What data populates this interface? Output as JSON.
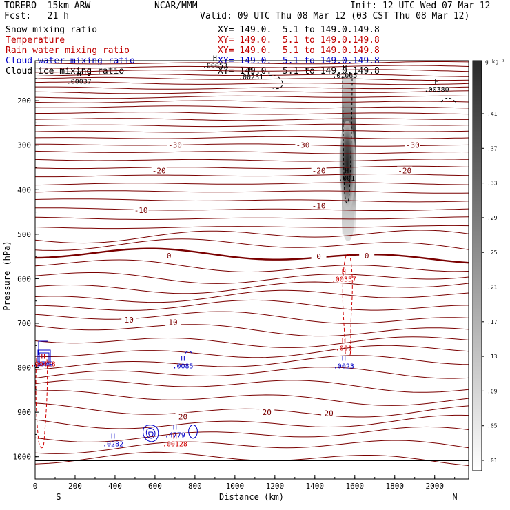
{
  "header": {
    "model": "TORERO  15km ARW",
    "center": "NCAR/MMM",
    "init": "Init: 12 UTC Wed 07 Mar 12",
    "fcst": "Fcst:   21 h",
    "valid": "Valid: 09 UTC Thu 08 Mar 12 (03 CST Thu 08 Mar 12)",
    "fields": [
      {
        "name": "Snow mixing ratio",
        "xy": "XY= 149.0.  5.1 to 149.0.149.8",
        "color": "#000000"
      },
      {
        "name": "Temperature",
        "xy": "XY= 149.0.  5.1 to 149.0.149.8",
        "color": "#c00000"
      },
      {
        "name": "Rain water mixing ratio",
        "xy": "XY= 149.0.  5.1 to 149.0.149.8",
        "color": "#c00000"
      },
      {
        "name": "Cloud water mixing ratio",
        "xy": "XY= 149.0.  5.1 to 149.0.149.8",
        "color": "#0000c8"
      },
      {
        "name": "Cloud ice mixing ratio",
        "xy": "XY= 149.0.  5.1 to 149.0.149.8",
        "color": "#000000"
      }
    ]
  },
  "chart_data": {
    "type": "contour cross-section",
    "xlabel": "Distance (km)",
    "ylabel": "Pressure (hPa)",
    "xlim": [
      0,
      2170
    ],
    "ylim": [
      1050,
      110
    ],
    "x_ticks": [
      0,
      200,
      400,
      600,
      800,
      1000,
      1200,
      1400,
      1600,
      1800,
      2000
    ],
    "y_ticks": [
      200,
      300,
      400,
      500,
      600,
      700,
      800,
      900,
      1000
    ],
    "end_labels": {
      "left": "S",
      "right": "N"
    },
    "colorbar": {
      "unit": "g kg⁻¹",
      "ticks": [
        ".01",
        ".05",
        ".09",
        ".13",
        ".17",
        ".21",
        ".25",
        ".29",
        ".33",
        ".37",
        ".41"
      ]
    },
    "temperature_isotherms": [
      {
        "value": -30,
        "label": "-30",
        "label_positions": [
          [
            700,
            300
          ],
          [
            1340,
            300
          ],
          [
            1890,
            300
          ]
        ]
      },
      {
        "value": -20,
        "label": "-20",
        "label_positions": [
          [
            620,
            357
          ],
          [
            1420,
            357
          ],
          [
            1850,
            357
          ]
        ]
      },
      {
        "value": -10,
        "label": "-10",
        "label_positions": [
          [
            530,
            446
          ],
          [
            1420,
            436
          ]
        ]
      },
      {
        "value": 0,
        "label": "0",
        "label_positions": [
          [
            670,
            548
          ],
          [
            1420,
            550
          ],
          [
            1660,
            548
          ]
        ]
      },
      {
        "value": 10,
        "label": "10",
        "label_positions": [
          [
            470,
            692
          ],
          [
            690,
            698
          ]
        ]
      },
      {
        "value": 20,
        "label": "20",
        "label_positions": [
          [
            740,
            910
          ],
          [
            1160,
            900
          ],
          [
            1470,
            902
          ]
        ]
      }
    ],
    "maxima": [
      {
        "field": "Cloud ice mixing ratio",
        "label": ".00037",
        "x": 220,
        "p": 160
      },
      {
        "field": "Cloud ice mixing ratio",
        "label": ".00053",
        "x": 900,
        "p": 125
      },
      {
        "field": "Cloud ice mixing ratio",
        "label": ".00231",
        "x": 1080,
        "p": 150
      },
      {
        "field": "Snow mixing ratio",
        "label": ".01065",
        "x": 1550,
        "p": 147
      },
      {
        "field": "Cloud ice mixing ratio",
        "label": ".00380",
        "x": 2010,
        "p": 178
      },
      {
        "field": "Snow mixing ratio",
        "label": ".001",
        "x": 1560,
        "p": 378
      },
      {
        "field": "Rain water mixing ratio",
        "label": ".00357",
        "x": 1545,
        "p": 605
      },
      {
        "field": "Rain water mixing ratio",
        "label": ".001",
        "x": 1545,
        "p": 760
      },
      {
        "field": "Cloud water mixing ratio",
        "label": ".0023",
        "x": 1545,
        "p": 800
      },
      {
        "field": "Cloud water mixing ratio",
        "label": ".0085",
        "x": 740,
        "p": 800
      },
      {
        "field": "Cloud water mixing ratio",
        "label": ".0282",
        "x": 390,
        "p": 975
      },
      {
        "field": "Cloud water mixing ratio",
        "label": ".4779",
        "x": 700,
        "p": 955
      },
      {
        "field": "Rain water mixing ratio",
        "label": ".00128",
        "x": 700,
        "p": 975
      },
      {
        "field": "Cloud water mixing ratio",
        "label": ".5749",
        "x": 40,
        "p": 795
      },
      {
        "field": "Rain water mixing ratio",
        "label": ".00428",
        "x": 40,
        "p": 795
      }
    ],
    "maximum_marker": "H"
  }
}
